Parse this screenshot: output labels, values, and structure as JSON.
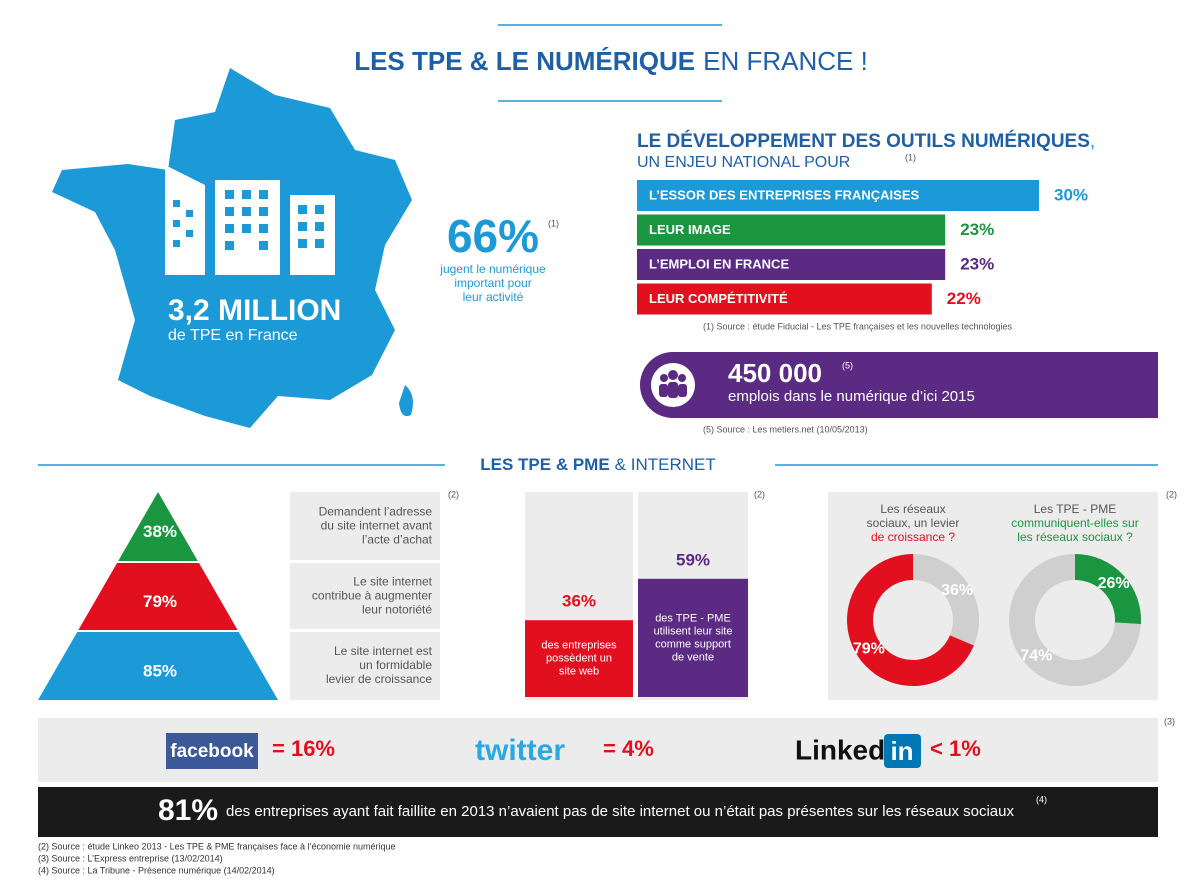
{
  "header": {
    "title_bold": "LES TPE & LE NUMÉRIQUE",
    "title_light": "EN FRANCE !"
  },
  "map": {
    "value": "3,2 MILLION",
    "label": "de TPE en France"
  },
  "highlight": {
    "value": "66%",
    "note": "(1)",
    "lines": [
      "jugent le numérique",
      "important pour",
      "leur activité"
    ]
  },
  "development": {
    "title": "LE DÉVELOPPEMENT DES OUTILS NUMÉRIQUES",
    "title_suffix": ",",
    "subtitle": "UN ENJEU NATIONAL POUR",
    "note": "(1)",
    "bars": [
      {
        "label": "L’ESSOR DES ENTREPRISES FRANÇAISES",
        "value": 30,
        "value_label": "30%",
        "color": "#1b9ad7"
      },
      {
        "label": "LEUR IMAGE",
        "value": 23,
        "value_label": "23%",
        "color": "#1a9641"
      },
      {
        "label": "L’EMPLOI EN FRANCE",
        "value": 23,
        "value_label": "23%",
        "color": "#5b2a82"
      },
      {
        "label": "LEUR COMPÉTITIVITÉ",
        "value": 22,
        "value_label": "22%",
        "color": "#e2101f"
      }
    ],
    "source": "(1) Source : étude Fiducial - Les TPE françaises et les nouvelles technologies"
  },
  "jobs": {
    "value": "450 000",
    "note": "(5)",
    "label": "emplois dans le numérique d’ici 2015",
    "source": "(5) Source :  Les metiers.net (10/05/2013)"
  },
  "internet": {
    "title_bold": "LES TPE & PME",
    "title_light": "& INTERNET",
    "pyramid": {
      "note": "(2)",
      "levels": [
        {
          "value": 38,
          "value_label": "38%",
          "color": "#1a9641",
          "lines": [
            "Demandent l’adresse",
            "du site internet avant",
            "l’acte d’achat"
          ]
        },
        {
          "value": 79,
          "value_label": "79%",
          "color": "#e2101f",
          "lines": [
            "Le site internet",
            "contribue à augmenter",
            "leur notoriété"
          ]
        },
        {
          "value": 85,
          "value_label": "85%",
          "color": "#1b9ad7",
          "lines": [
            "Le site internet est",
            "un formidable",
            "levier de croissance"
          ]
        }
      ]
    },
    "columns": {
      "note": "(2)",
      "bars": [
        {
          "value": 36,
          "value_label": "36%",
          "color": "#e2101f",
          "lines": [
            "des entreprises",
            "possèdent un",
            "site web"
          ]
        },
        {
          "value": 59,
          "value_label": "59%",
          "color": "#5b2a82",
          "lines": [
            "des TPE - PME",
            "utilisent leur site",
            "comme support",
            "de vente"
          ]
        }
      ]
    },
    "donuts": {
      "note": "(2)",
      "charts": [
        {
          "title_lines": [
            {
              "text": "Les réseaux",
              "color": "#555555"
            },
            {
              "text": "sociaux, un levier",
              "color": "#555555"
            },
            {
              "text": "de croissance ?",
              "color": "#e2101f"
            }
          ],
          "segments": [
            {
              "value": 36,
              "value_label": "36%",
              "color": "#cfcfcf"
            },
            {
              "value": 79,
              "value_label": "79%",
              "color": "#e2101f"
            }
          ]
        },
        {
          "title_lines": [
            {
              "text": "Les TPE - PME",
              "color": "#555555"
            },
            {
              "text": "communiquent-elles sur",
              "color": "#1a9641"
            },
            {
              "text": "les réseaux sociaux ?",
              "color": "#1a9641"
            }
          ],
          "segments": [
            {
              "value": 26,
              "value_label": "26%",
              "color": "#1a9641"
            },
            {
              "value": 74,
              "value_label": "74%",
              "color": "#cfcfcf"
            }
          ]
        }
      ]
    }
  },
  "social": {
    "note": "(3)",
    "facebook": "facebook",
    "facebook_stat": "= 16%",
    "twitter": "twitter",
    "twitter_stat": "= 4%",
    "linkedin": "Linked",
    "linkedin_box": "in",
    "linkedin_stat": "< 1%"
  },
  "footer": {
    "value": "81%",
    "note": "(4)",
    "text": "des entreprises ayant fait faillite en 2013 n’avaient pas de site internet ou n’était pas présentes sur les réseaux sociaux",
    "sources": [
      "(2) Source : étude Linkeo 2013 - Les TPE & PME françaises face à l’économie numérique",
      "(3) Source : L’Express entreprise (13/02/2014)",
      "(4) Source : La Tribune - Présence numérique (14/02/2014)"
    ]
  }
}
